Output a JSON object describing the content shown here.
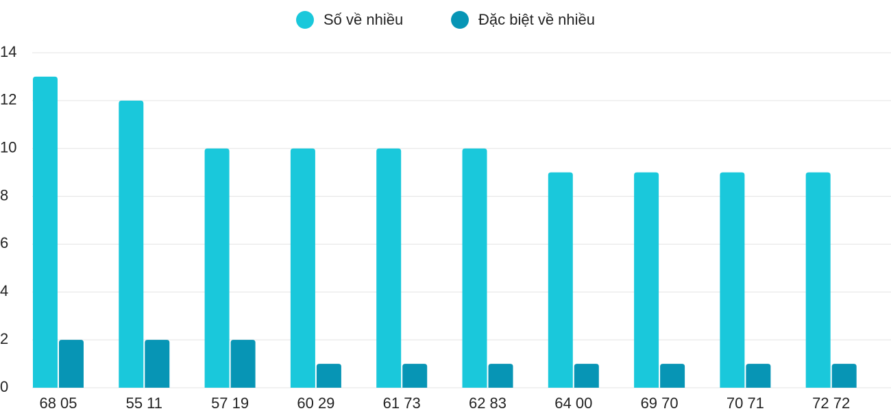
{
  "chart_data": {
    "type": "bar",
    "categories": [
      "68 05",
      "55 11",
      "57 19",
      "60 29",
      "61 73",
      "62 83",
      "64 00",
      "69 70",
      "70 71",
      "72 72"
    ],
    "series": [
      {
        "name": "Số về nhiều",
        "color": "#1ac8db",
        "values": [
          13,
          12,
          10,
          10,
          10,
          10,
          9,
          9,
          9,
          9
        ]
      },
      {
        "name": "Đặc biệt về nhiều",
        "color": "#0795b5",
        "values": [
          2,
          2,
          2,
          1,
          1,
          1,
          1,
          1,
          1,
          1
        ]
      }
    ],
    "ylim": [
      0,
      14
    ],
    "yticks": [
      0,
      2,
      4,
      6,
      8,
      10,
      12,
      14
    ],
    "grid": true,
    "legend": "top"
  }
}
